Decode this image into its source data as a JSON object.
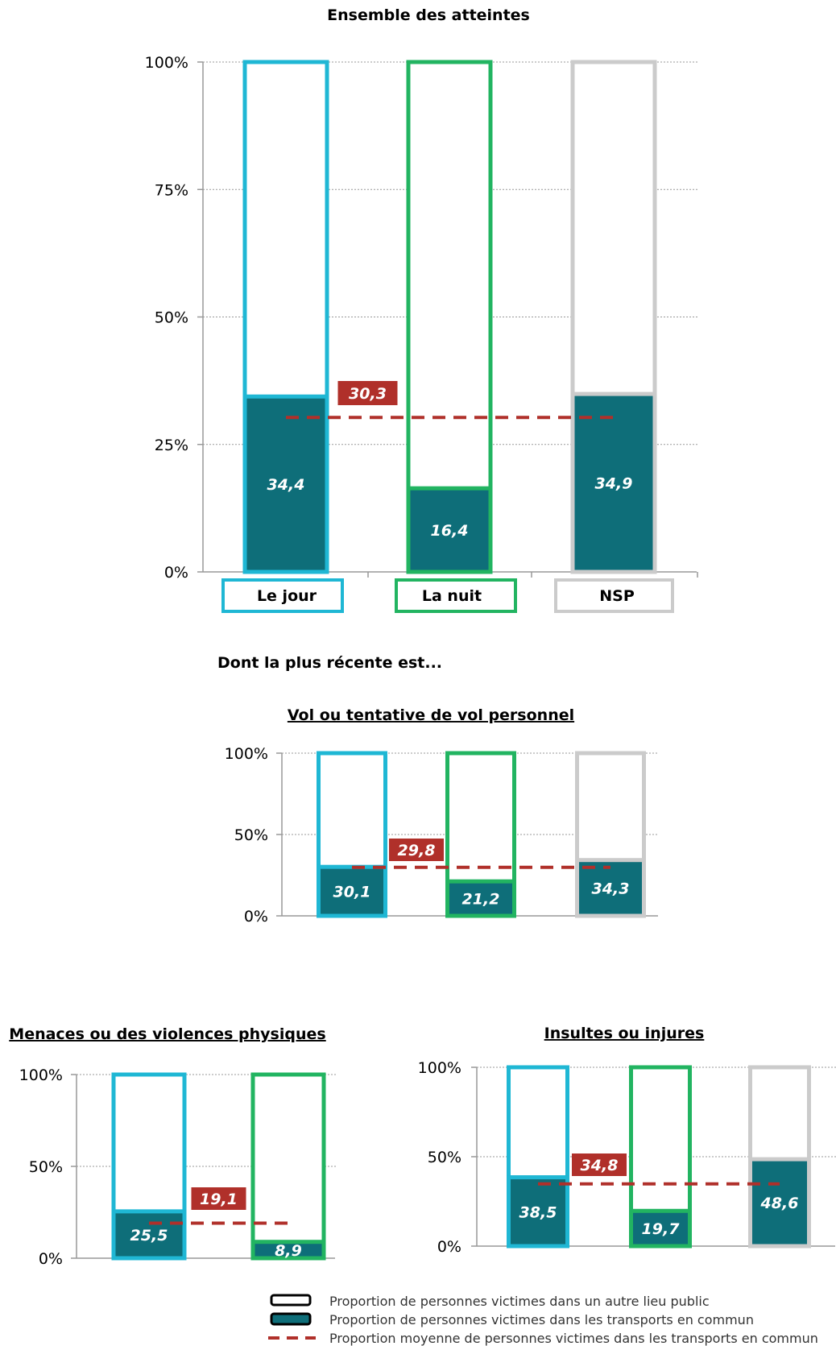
{
  "colors": {
    "jour": "#1fb7d4",
    "nuit": "#22b461",
    "nsp": "#cbcbcb",
    "fill": "#0e6e79",
    "avg": "#b0302a",
    "axis": "#999999",
    "grid": "#999999"
  },
  "section_title": "Dont la plus récente est...",
  "chart_data": [
    {
      "type": "bar",
      "title": "Ensemble des atteintes",
      "categories": [
        "Le jour",
        "La nuit",
        "NSP"
      ],
      "series": [
        {
          "name": "Proportion de personnes victimes dans les transports en commun",
          "values": [
            34.4,
            16.4,
            34.9
          ]
        }
      ],
      "value_labels": [
        "34,4",
        "16,4",
        "34,9"
      ],
      "average": 30.3,
      "average_label": "30,3",
      "yticks": [
        "0%",
        "25%",
        "50%",
        "75%",
        "100%"
      ],
      "ylim": [
        0,
        100
      ],
      "grid": true
    },
    {
      "type": "bar",
      "title": "Vol ou tentative de vol personnel",
      "categories": [
        "Le jour",
        "La nuit",
        "NSP"
      ],
      "series": [
        {
          "name": "Proportion de personnes victimes dans les transports en commun",
          "values": [
            30.1,
            21.2,
            34.3
          ]
        }
      ],
      "value_labels": [
        "30,1",
        "21,2",
        "34,3"
      ],
      "average": 29.8,
      "average_label": "29,8",
      "yticks": [
        "0%",
        "50%",
        "100%"
      ],
      "ylim": [
        0,
        100
      ],
      "grid": true
    },
    {
      "type": "bar",
      "title": "Menaces ou des violences physiques",
      "categories": [
        "Le jour",
        "La nuit"
      ],
      "series": [
        {
          "name": "Proportion de personnes victimes dans les transports en commun",
          "values": [
            25.5,
            8.9
          ]
        }
      ],
      "value_labels": [
        "25,5",
        "8,9"
      ],
      "average": 19.1,
      "average_label": "19,1",
      "yticks": [
        "0%",
        "50%",
        "100%"
      ],
      "ylim": [
        0,
        100
      ],
      "grid": true
    },
    {
      "type": "bar",
      "title": "Insultes ou injures",
      "categories": [
        "Le jour",
        "La nuit",
        "NSP"
      ],
      "series": [
        {
          "name": "Proportion de personnes victimes dans les transports en commun",
          "values": [
            38.5,
            19.7,
            48.6
          ]
        }
      ],
      "value_labels": [
        "38,5",
        "19,7",
        "48,6"
      ],
      "average": 34.8,
      "average_label": "34,8",
      "yticks": [
        "0%",
        "50%",
        "100%"
      ],
      "ylim": [
        0,
        100
      ],
      "grid": true
    }
  ],
  "legend": [
    {
      "kind": "outline",
      "label": "Proportion de personnes victimes dans un autre lieu public"
    },
    {
      "kind": "filled",
      "label": "Proportion de personnes victimes dans les transports en commun"
    },
    {
      "kind": "dashed",
      "label": "Proportion moyenne de personnes victimes dans les transports en commun"
    }
  ]
}
